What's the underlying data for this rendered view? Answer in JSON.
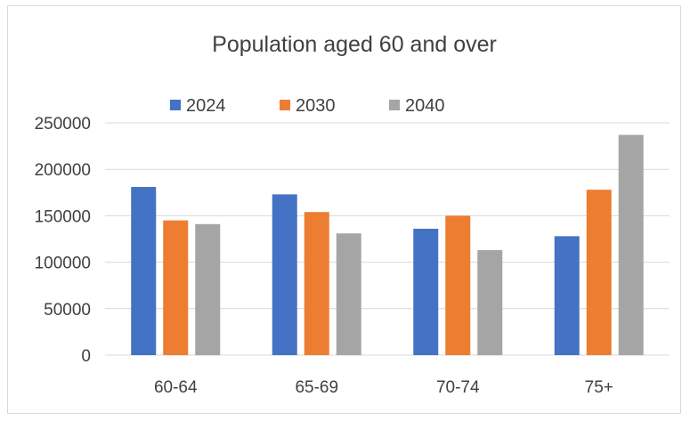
{
  "chart_data": {
    "type": "bar",
    "title": "Population aged 60 and over",
    "xlabel": "",
    "ylabel": "",
    "categories": [
      "60-64",
      "65-69",
      "70-74",
      "75+"
    ],
    "series": [
      {
        "name": "2024",
        "color": "#4472c4",
        "values": [
          181000,
          173000,
          136000,
          128000
        ]
      },
      {
        "name": "2030",
        "color": "#ed7d31",
        "values": [
          145000,
          154000,
          150000,
          178000
        ]
      },
      {
        "name": "2040",
        "color": "#a5a5a5",
        "values": [
          141000,
          131000,
          113000,
          237000
        ]
      }
    ],
    "ylim": [
      0,
      250000
    ],
    "yticks": [
      "0",
      "50000",
      "100000",
      "150000",
      "200000",
      "250000"
    ],
    "grid": true,
    "legend_position": "top"
  }
}
